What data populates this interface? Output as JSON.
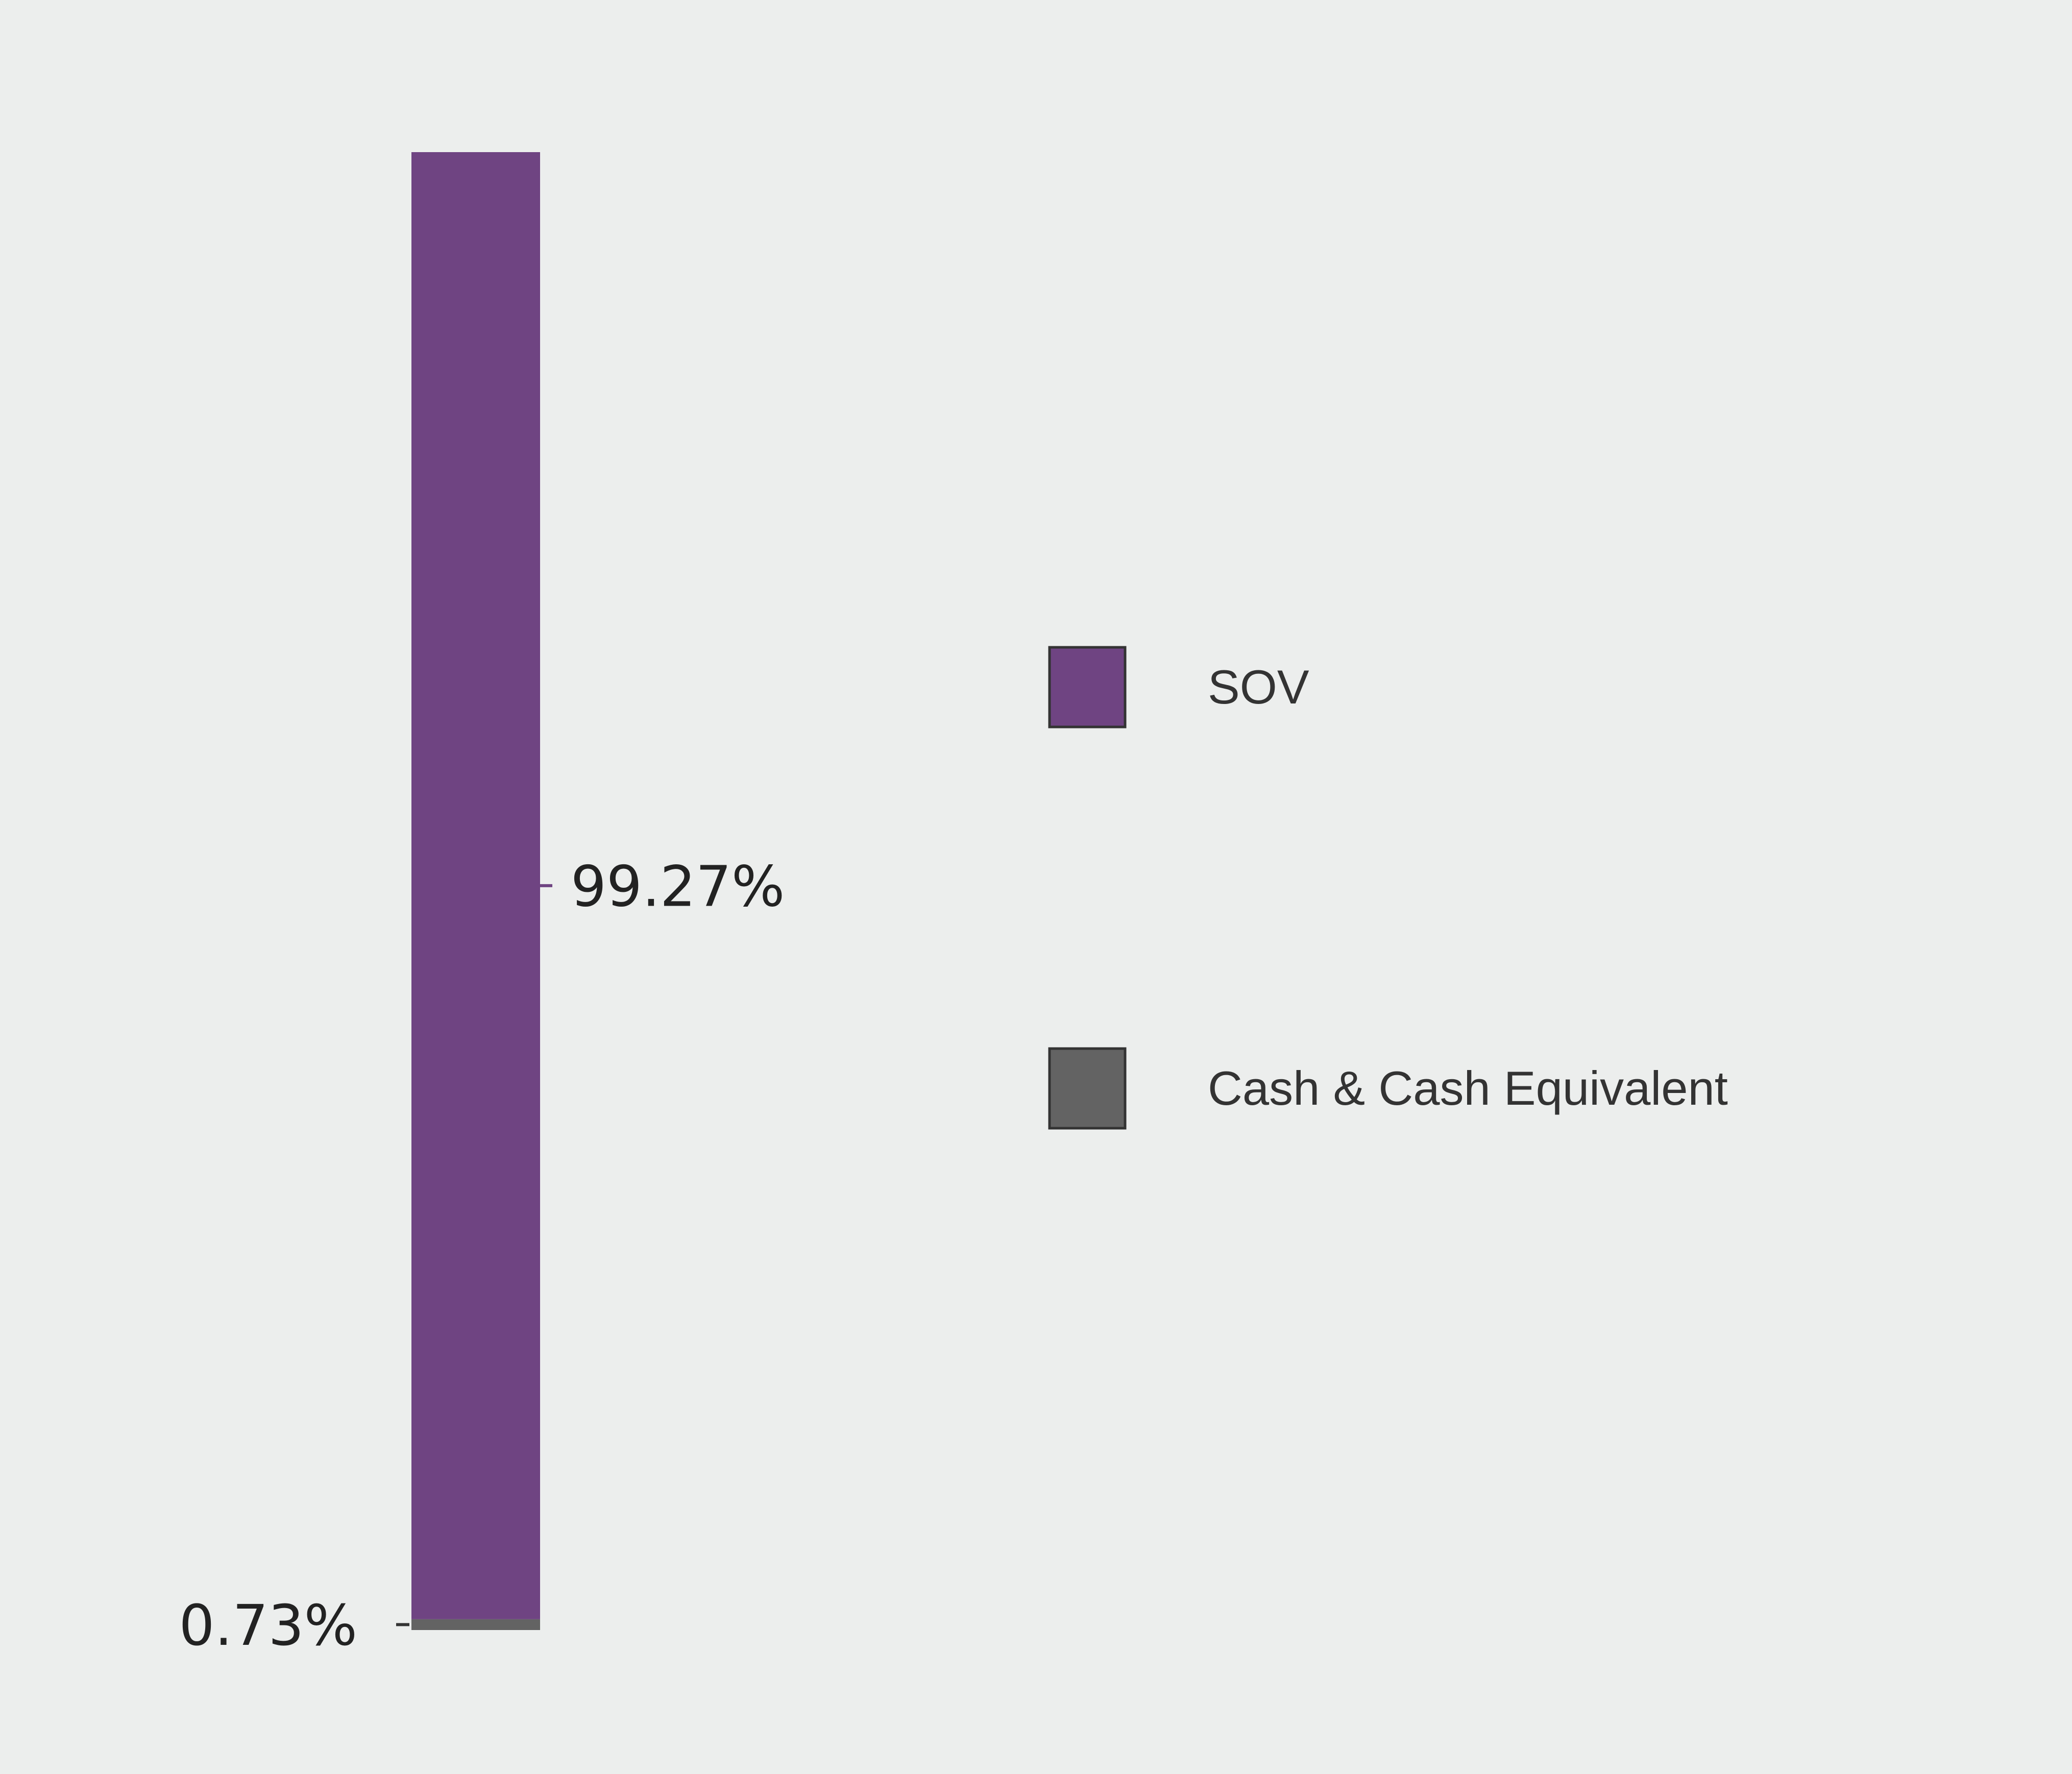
{
  "chart_data": {
    "type": "bar",
    "stacked": true,
    "series": [
      {
        "name": "SOV",
        "value": 99.27,
        "label": "99.27%",
        "color": "#6f4482"
      },
      {
        "name": "Cash & Cash Equivalent",
        "value": 0.73,
        "label": "0.73%",
        "color": "#636363"
      }
    ],
    "ylim": [
      0,
      100
    ],
    "grid": false,
    "legend_position": "right",
    "title": "",
    "xlabel": "",
    "ylabel": ""
  }
}
